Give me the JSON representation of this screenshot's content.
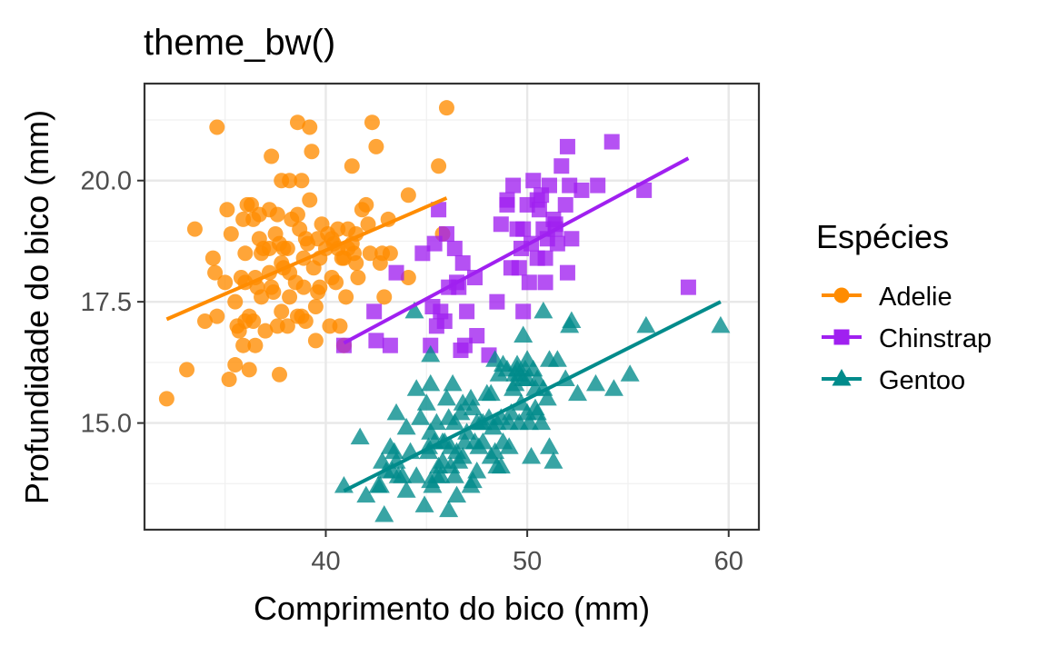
{
  "chart_data": {
    "type": "scatter",
    "title": "theme_bw()",
    "xlabel": "Comprimento do bico (mm)",
    "ylabel": "Profundidade do bico (mm)",
    "xlim": [
      31,
      61.5
    ],
    "ylim": [
      12.8,
      22.0
    ],
    "x_ticks": [
      40,
      50,
      60
    ],
    "y_ticks": [
      15.0,
      17.5,
      20.0
    ],
    "x_tick_labels": [
      "40",
      "50",
      "60"
    ],
    "y_tick_labels": [
      "15.0",
      "17.5",
      "20.0"
    ],
    "grid": true,
    "legend": {
      "title": "Espécies",
      "position": "right"
    },
    "series": [
      {
        "name": "Adelie",
        "color": "#FF8C00",
        "shape": "circle",
        "fit": {
          "x0": 32.1,
          "y0": 17.14,
          "x1": 46.0,
          "y1": 19.64
        },
        "points": [
          [
            32.1,
            15.5
          ],
          [
            33.1,
            16.1
          ],
          [
            33.5,
            19.0
          ],
          [
            34.0,
            17.1
          ],
          [
            34.4,
            18.4
          ],
          [
            34.5,
            18.1
          ],
          [
            34.6,
            21.1
          ],
          [
            34.6,
            17.2
          ],
          [
            35.0,
            17.9
          ],
          [
            35.1,
            19.4
          ],
          [
            35.2,
            15.9
          ],
          [
            35.3,
            18.9
          ],
          [
            35.5,
            16.2
          ],
          [
            35.5,
            17.5
          ],
          [
            35.6,
            17.0
          ],
          [
            35.7,
            16.9
          ],
          [
            35.9,
            16.6
          ],
          [
            35.9,
            19.2
          ],
          [
            36.0,
            17.9
          ],
          [
            36.0,
            18.5
          ],
          [
            36.0,
            17.1
          ],
          [
            36.2,
            16.1
          ],
          [
            36.2,
            17.2
          ],
          [
            36.3,
            19.5
          ],
          [
            36.4,
            17.1
          ],
          [
            36.5,
            16.6
          ],
          [
            36.5,
            18.0
          ],
          [
            36.6,
            17.8
          ],
          [
            36.7,
            18.8
          ],
          [
            36.7,
            19.3
          ],
          [
            36.8,
            18.5
          ],
          [
            36.9,
            18.6
          ],
          [
            37.0,
            16.9
          ],
          [
            37.2,
            18.1
          ],
          [
            37.2,
            19.4
          ],
          [
            37.3,
            17.8
          ],
          [
            37.3,
            20.5
          ],
          [
            37.5,
            18.9
          ],
          [
            37.6,
            17.0
          ],
          [
            37.6,
            19.3
          ],
          [
            37.7,
            16.0
          ],
          [
            37.7,
            18.7
          ],
          [
            37.8,
            17.3
          ],
          [
            37.8,
            18.3
          ],
          [
            37.8,
            20.0
          ],
          [
            37.9,
            18.6
          ],
          [
            38.1,
            17.0
          ],
          [
            38.1,
            18.6
          ],
          [
            38.2,
            18.1
          ],
          [
            38.2,
            20.0
          ],
          [
            38.3,
            19.2
          ],
          [
            38.5,
            17.9
          ],
          [
            38.6,
            17.2
          ],
          [
            38.6,
            21.2
          ],
          [
            38.7,
            19.0
          ],
          [
            38.8,
            17.2
          ],
          [
            38.8,
            20.0
          ],
          [
            38.9,
            17.8
          ],
          [
            39.0,
            17.1
          ],
          [
            39.1,
            18.7
          ],
          [
            39.2,
            19.6
          ],
          [
            39.2,
            21.1
          ],
          [
            39.3,
            20.6
          ],
          [
            39.5,
            16.7
          ],
          [
            39.5,
            17.4
          ],
          [
            39.6,
            17.7
          ],
          [
            39.6,
            18.8
          ],
          [
            39.7,
            18.4
          ],
          [
            39.8,
            19.1
          ],
          [
            40.1,
            18.9
          ],
          [
            40.2,
            17.0
          ],
          [
            40.3,
            18.0
          ],
          [
            40.5,
            17.9
          ],
          [
            40.6,
            18.6
          ],
          [
            40.6,
            19.0
          ],
          [
            40.7,
            17.0
          ],
          [
            40.8,
            18.4
          ],
          [
            40.9,
            16.6
          ],
          [
            41.0,
            17.6
          ],
          [
            41.1,
            18.6
          ],
          [
            41.1,
            19.0
          ],
          [
            41.3,
            20.3
          ],
          [
            41.4,
            18.5
          ],
          [
            41.5,
            18.3
          ],
          [
            41.6,
            18.0
          ],
          [
            42.0,
            19.5
          ],
          [
            42.1,
            19.1
          ],
          [
            42.2,
            18.5
          ],
          [
            42.3,
            21.2
          ],
          [
            42.5,
            20.7
          ],
          [
            42.7,
            18.3
          ],
          [
            42.8,
            18.5
          ],
          [
            42.9,
            17.6
          ],
          [
            43.1,
            19.2
          ],
          [
            43.2,
            18.5
          ],
          [
            44.1,
            19.7
          ],
          [
            44.1,
            18.0
          ],
          [
            45.6,
            20.3
          ],
          [
            45.8,
            18.9
          ],
          [
            46.0,
            21.5
          ],
          [
            36.1,
            19.5
          ],
          [
            37.2,
            18.6
          ],
          [
            38.6,
            19.3
          ],
          [
            39.0,
            18.8
          ],
          [
            40.0,
            18.6
          ],
          [
            40.4,
            18.7
          ],
          [
            41.8,
            19.4
          ],
          [
            38.2,
            17.6
          ],
          [
            36.8,
            17.6
          ],
          [
            39.4,
            18.2
          ],
          [
            37.9,
            18.2
          ],
          [
            38.9,
            18.4
          ],
          [
            40.3,
            18.8
          ],
          [
            41.5,
            18.9
          ],
          [
            35.8,
            18.0
          ],
          [
            40.9,
            18.4
          ],
          [
            36.4,
            19.2
          ],
          [
            39.7,
            17.8
          ],
          [
            37.4,
            17.7
          ],
          [
            41.3,
            18.7
          ]
        ]
      },
      {
        "name": "Chinstrap",
        "color": "#A020F0",
        "shape": "square",
        "fit": {
          "x0": 40.9,
          "y0": 16.65,
          "x1": 58.0,
          "y1": 20.46
        },
        "points": [
          [
            40.9,
            16.6
          ],
          [
            42.4,
            17.3
          ],
          [
            42.5,
            16.7
          ],
          [
            43.2,
            16.6
          ],
          [
            43.5,
            18.1
          ],
          [
            45.2,
            16.6
          ],
          [
            45.4,
            18.7
          ],
          [
            45.5,
            17.0
          ],
          [
            45.6,
            19.4
          ],
          [
            45.7,
            17.3
          ],
          [
            45.9,
            17.1
          ],
          [
            46.0,
            18.9
          ],
          [
            46.1,
            17.8
          ],
          [
            46.4,
            18.6
          ],
          [
            46.5,
            17.9
          ],
          [
            46.6,
            17.8
          ],
          [
            46.7,
            16.5
          ],
          [
            46.8,
            18.3
          ],
          [
            46.9,
            16.6
          ],
          [
            47.0,
            17.3
          ],
          [
            47.5,
            16.8
          ],
          [
            48.1,
            16.4
          ],
          [
            49.0,
            19.5
          ],
          [
            49.2,
            18.2
          ],
          [
            49.3,
            19.9
          ],
          [
            49.5,
            19.0
          ],
          [
            49.6,
            18.2
          ],
          [
            49.7,
            18.6
          ],
          [
            49.8,
            17.3
          ],
          [
            50.0,
            19.5
          ],
          [
            50.1,
            17.9
          ],
          [
            50.2,
            18.7
          ],
          [
            50.5,
            18.4
          ],
          [
            50.6,
            19.4
          ],
          [
            50.7,
            19.7
          ],
          [
            50.8,
            19.0
          ],
          [
            50.9,
            17.9
          ],
          [
            51.0,
            18.8
          ],
          [
            51.3,
            19.2
          ],
          [
            51.4,
            19.0
          ],
          [
            51.5,
            18.7
          ],
          [
            51.7,
            20.3
          ],
          [
            51.9,
            19.5
          ],
          [
            52.0,
            18.1
          ],
          [
            52.0,
            20.7
          ],
          [
            52.2,
            18.8
          ],
          [
            52.7,
            19.8
          ],
          [
            53.5,
            19.9
          ],
          [
            54.2,
            20.8
          ],
          [
            55.8,
            19.8
          ],
          [
            58.0,
            17.8
          ],
          [
            48.5,
            17.5
          ],
          [
            50.3,
            20.0
          ],
          [
            49.0,
            19.6
          ],
          [
            50.5,
            19.6
          ],
          [
            51.1,
            19.9
          ],
          [
            47.4,
            18.0
          ],
          [
            44.8,
            18.5
          ],
          [
            45.3,
            17.4
          ],
          [
            48.7,
            19.1
          ],
          [
            50.9,
            18.4
          ],
          [
            51.4,
            19.1
          ],
          [
            52.1,
            19.9
          ],
          [
            49.8,
            19.0
          ]
        ]
      },
      {
        "name": "Gentoo",
        "color": "#008B8B",
        "shape": "triangle",
        "fit": {
          "x0": 40.9,
          "y0": 13.6,
          "x1": 59.6,
          "y1": 17.5
        },
        "points": [
          [
            40.9,
            13.7
          ],
          [
            41.7,
            14.7
          ],
          [
            42.0,
            13.5
          ],
          [
            42.6,
            13.7
          ],
          [
            42.7,
            13.7
          ],
          [
            42.8,
            14.2
          ],
          [
            42.9,
            13.1
          ],
          [
            43.2,
            14.5
          ],
          [
            43.3,
            14.0
          ],
          [
            43.4,
            14.4
          ],
          [
            43.5,
            14.2
          ],
          [
            43.5,
            15.2
          ],
          [
            43.6,
            13.9
          ],
          [
            43.8,
            13.9
          ],
          [
            44.0,
            13.6
          ],
          [
            44.4,
            17.3
          ],
          [
            44.5,
            13.9
          ],
          [
            44.5,
            15.7
          ],
          [
            44.9,
            13.3
          ],
          [
            45.0,
            15.4
          ],
          [
            45.1,
            14.4
          ],
          [
            45.1,
            14.5
          ],
          [
            45.2,
            13.8
          ],
          [
            45.2,
            14.8
          ],
          [
            45.2,
            15.8
          ],
          [
            45.2,
            16.4
          ],
          [
            45.3,
            13.7
          ],
          [
            45.4,
            14.6
          ],
          [
            45.5,
            13.9
          ],
          [
            45.5,
            15.0
          ],
          [
            45.7,
            13.9
          ],
          [
            45.8,
            14.2
          ],
          [
            45.8,
            14.6
          ],
          [
            46.1,
            13.2
          ],
          [
            46.1,
            15.1
          ],
          [
            46.2,
            14.1
          ],
          [
            46.2,
            14.5
          ],
          [
            46.3,
            15.8
          ],
          [
            46.4,
            15.0
          ],
          [
            46.5,
            13.5
          ],
          [
            46.5,
            14.4
          ],
          [
            46.6,
            14.2
          ],
          [
            46.8,
            14.3
          ],
          [
            46.8,
            15.4
          ],
          [
            46.9,
            14.6
          ],
          [
            47.2,
            13.7
          ],
          [
            47.2,
            15.5
          ],
          [
            47.3,
            15.3
          ],
          [
            47.4,
            14.6
          ],
          [
            47.5,
            14.0
          ],
          [
            47.5,
            15.0
          ],
          [
            47.6,
            14.5
          ],
          [
            47.7,
            15.0
          ],
          [
            47.8,
            15.0
          ],
          [
            48.1,
            15.1
          ],
          [
            48.2,
            14.3
          ],
          [
            48.2,
            15.6
          ],
          [
            48.4,
            14.4
          ],
          [
            48.4,
            16.3
          ],
          [
            48.5,
            14.1
          ],
          [
            48.5,
            15.0
          ],
          [
            48.6,
            16.0
          ],
          [
            48.7,
            14.1
          ],
          [
            48.7,
            15.1
          ],
          [
            48.8,
            16.2
          ],
          [
            49.0,
            16.1
          ],
          [
            49.1,
            14.5
          ],
          [
            49.1,
            15.0
          ],
          [
            49.2,
            15.2
          ],
          [
            49.3,
            15.7
          ],
          [
            49.4,
            15.8
          ],
          [
            49.5,
            16.1
          ],
          [
            49.5,
            16.2
          ],
          [
            49.6,
            15.0
          ],
          [
            49.6,
            16.0
          ],
          [
            49.8,
            15.9
          ],
          [
            49.8,
            16.8
          ],
          [
            49.9,
            16.1
          ],
          [
            50.0,
            15.2
          ],
          [
            50.0,
            15.9
          ],
          [
            50.0,
            16.3
          ],
          [
            50.1,
            15.0
          ],
          [
            50.2,
            14.3
          ],
          [
            50.4,
            15.3
          ],
          [
            50.4,
            15.7
          ],
          [
            50.5,
            15.2
          ],
          [
            50.5,
            15.9
          ],
          [
            50.7,
            15.0
          ],
          [
            50.8,
            15.7
          ],
          [
            50.8,
            17.3
          ],
          [
            51.1,
            14.5
          ],
          [
            51.1,
            16.3
          ],
          [
            51.3,
            14.2
          ],
          [
            51.5,
            16.3
          ],
          [
            52.1,
            17.0
          ],
          [
            52.2,
            17.1
          ],
          [
            52.5,
            15.6
          ],
          [
            53.4,
            15.8
          ],
          [
            54.3,
            15.7
          ],
          [
            55.1,
            16.0
          ],
          [
            55.9,
            17.0
          ],
          [
            59.6,
            17.0
          ],
          [
            43.0,
            14.0
          ],
          [
            44.0,
            14.9
          ],
          [
            44.7,
            15.1
          ],
          [
            45.9,
            14.6
          ],
          [
            46.0,
            15.5
          ],
          [
            46.7,
            15.2
          ],
          [
            47.0,
            14.8
          ],
          [
            47.3,
            13.8
          ],
          [
            48.0,
            15.6
          ],
          [
            48.8,
            14.6
          ],
          [
            49.4,
            16.0
          ],
          [
            50.3,
            16.1
          ],
          [
            51.0,
            15.5
          ],
          [
            51.9,
            15.9
          ],
          [
            46.4,
            13.9
          ],
          [
            47.8,
            14.6
          ],
          [
            48.3,
            14.9
          ],
          [
            45.6,
            14.1
          ],
          [
            44.2,
            14.4
          ],
          [
            49.7,
            15.4
          ]
        ]
      }
    ]
  }
}
